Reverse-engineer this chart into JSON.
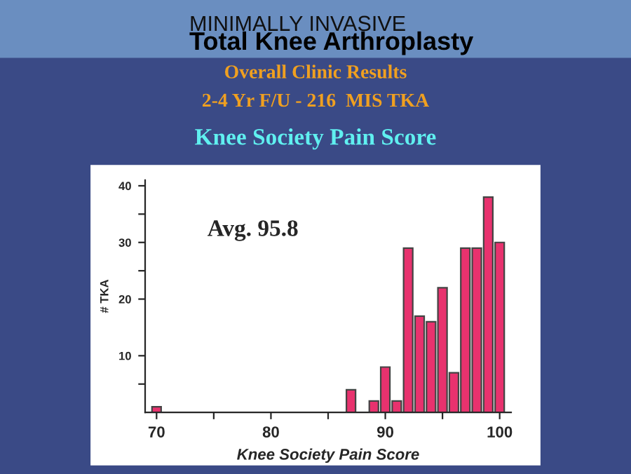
{
  "chart_data": {
    "type": "bar",
    "title": "Knee Society Pain Score",
    "subtitle": "2-4 Yr F/U - 216  MIS TKA",
    "annotations": [
      "MINIMALLY INVASIVE",
      "Total Knee Arthroplasty",
      "Overall Clinic Results",
      "Avg. 95.8"
    ],
    "xlabel": "Knee Society Pain Score",
    "ylabel": "# TKA",
    "x": [
      70,
      87,
      89,
      90,
      91,
      92,
      93,
      94,
      95,
      96,
      97,
      98,
      99,
      100
    ],
    "values": [
      1,
      4,
      2,
      8,
      2,
      29,
      17,
      16,
      22,
      7,
      29,
      29,
      38,
      30
    ],
    "color": "#e8326e",
    "xlim": [
      69,
      101
    ],
    "xticks": [
      70,
      {
        "value": 75,
        "label": null
      },
      80,
      {
        "value": 85,
        "label": null
      },
      90,
      {
        "value": 95,
        "label": null
      },
      100
    ],
    "ylim": [
      0,
      41
    ],
    "yticks": [
      {
        "value": 5,
        "label": null
      },
      10,
      20,
      {
        "value": 25,
        "label": null
      },
      30,
      {
        "value": 35,
        "label": null
      },
      40
    ],
    "grid": false,
    "legend": false
  }
}
